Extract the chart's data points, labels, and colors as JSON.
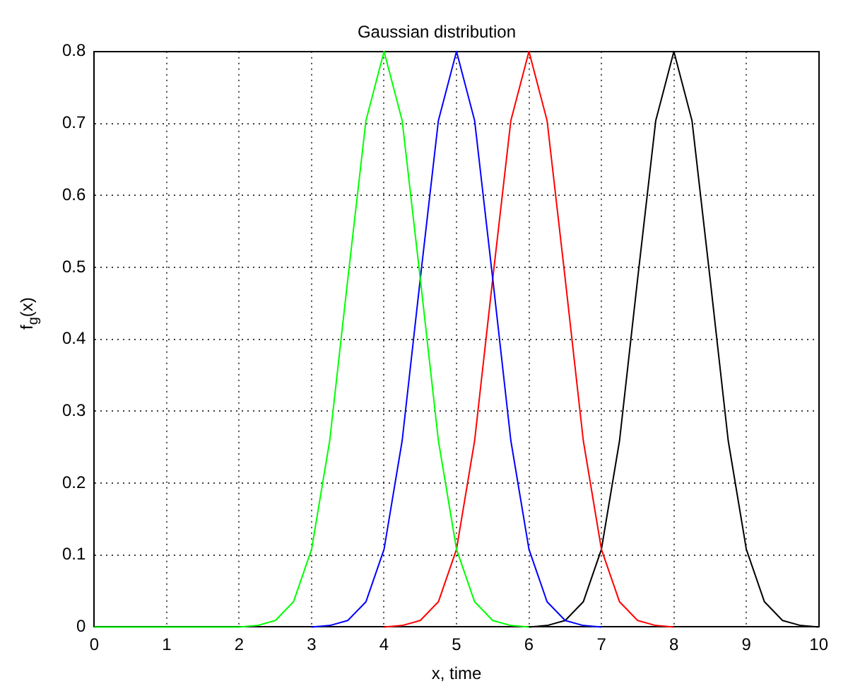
{
  "chart_data": {
    "type": "line",
    "title": "Gaussian distribution",
    "xlabel": "x, time",
    "ylabel": "f$_{g}$(x)",
    "xlim": [
      0,
      10
    ],
    "ylim": [
      0,
      0.8
    ],
    "xticks": [
      0,
      1,
      2,
      3,
      4,
      5,
      6,
      7,
      8,
      9,
      10
    ],
    "yticks": [
      0,
      0.1,
      0.2,
      0.3,
      0.4,
      0.5,
      0.6,
      0.7,
      0.8
    ],
    "grid": true,
    "legend": false,
    "marker": "none",
    "line_style": "solid",
    "series": [
      {
        "color": "#00ff00",
        "x": [
          0,
          2,
          2.25,
          2.5,
          2.75,
          3,
          3.25,
          3.5,
          3.75,
          4,
          4.25,
          4.5,
          4.75,
          5,
          5.25,
          5.5,
          5.75,
          6
        ],
        "values": [
          0,
          0,
          0.002,
          0.009,
          0.035,
          0.108,
          0.259,
          0.484,
          0.704,
          0.8,
          0.704,
          0.484,
          0.259,
          0.108,
          0.035,
          0.009,
          0.002,
          0
        ]
      },
      {
        "color": "#0000ff",
        "x": [
          3,
          3.25,
          3.5,
          3.75,
          4,
          4.25,
          4.5,
          4.75,
          5,
          5.25,
          5.5,
          5.75,
          6,
          6.25,
          6.5,
          6.75,
          7
        ],
        "values": [
          0,
          0.002,
          0.009,
          0.035,
          0.108,
          0.259,
          0.484,
          0.704,
          0.8,
          0.704,
          0.484,
          0.259,
          0.108,
          0.035,
          0.009,
          0.002,
          0
        ]
      },
      {
        "color": "#ff0000",
        "x": [
          4,
          4.25,
          4.5,
          4.75,
          5,
          5.25,
          5.5,
          5.75,
          6,
          6.25,
          6.5,
          6.75,
          7,
          7.25,
          7.5,
          7.75,
          8
        ],
        "values": [
          0,
          0.002,
          0.009,
          0.035,
          0.108,
          0.259,
          0.484,
          0.704,
          0.8,
          0.704,
          0.484,
          0.259,
          0.108,
          0.035,
          0.009,
          0.002,
          0
        ]
      },
      {
        "color": "#000000",
        "x": [
          6,
          6.25,
          6.5,
          6.75,
          7,
          7.25,
          7.5,
          7.75,
          8,
          8.25,
          8.5,
          8.75,
          9,
          9.25,
          9.5,
          9.75,
          10
        ],
        "values": [
          0,
          0.002,
          0.009,
          0.035,
          0.108,
          0.259,
          0.484,
          0.704,
          0.8,
          0.704,
          0.484,
          0.259,
          0.108,
          0.035,
          0.009,
          0.002,
          0
        ]
      }
    ]
  }
}
